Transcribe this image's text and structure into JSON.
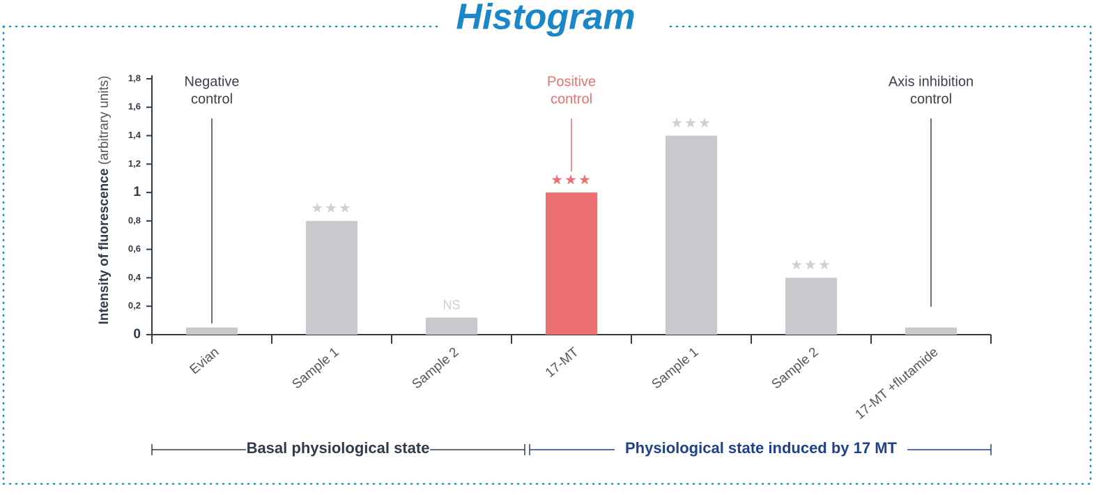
{
  "chart_data": {
    "type": "bar",
    "title": "Histogram",
    "y_label": "Intensity of fluorescence",
    "y_label_units": "(arbitrary units)",
    "categories": [
      "Evian",
      "Sample 1",
      "Sample 2",
      "17-MT",
      "Sample 1",
      "Sample 2",
      "17-MT +flutamide"
    ],
    "values": [
      0.05,
      0.8,
      0.12,
      1.0,
      1.4,
      0.4,
      0.05
    ],
    "colors": [
      "#c8c8cd",
      "#c8c8cd",
      "#c8c8cd",
      "#ec7072",
      "#c8c8cd",
      "#c8c8cd",
      "#c8c8cd"
    ],
    "significance": [
      null,
      "★★★",
      "NS",
      "★★★",
      "★★★",
      "★★★",
      null
    ],
    "ylim": [
      0,
      1.8
    ],
    "yticks": [
      0,
      {
        "value": 0.2,
        "label": "0,2"
      },
      {
        "value": 0.4,
        "label": "0,4"
      },
      {
        "value": 0.6,
        "label": "0,6"
      },
      {
        "value": 0.8,
        "label": "0,8"
      },
      1,
      {
        "value": 1.2,
        "label": "1,2"
      },
      {
        "value": 1.4,
        "label": "1,4"
      },
      {
        "value": 1.6,
        "label": "1,6"
      },
      {
        "value": 1.8,
        "label": "1,8"
      }
    ],
    "annotations": [
      {
        "lines": [
          "Negative",
          "control"
        ],
        "color": "#3a3f4a"
      },
      {
        "lines": [
          "Positive",
          "control"
        ],
        "color": "#ec7072"
      },
      {
        "lines": [
          "Axis inhibition",
          "control"
        ],
        "color": "#3a3f4a"
      }
    ],
    "groups": [
      {
        "label": "Basal physiological state",
        "color": "#2f3a4a"
      },
      {
        "label": "Physiological state induced by 17 MT",
        "color": "#1f3f8f"
      }
    ]
  }
}
